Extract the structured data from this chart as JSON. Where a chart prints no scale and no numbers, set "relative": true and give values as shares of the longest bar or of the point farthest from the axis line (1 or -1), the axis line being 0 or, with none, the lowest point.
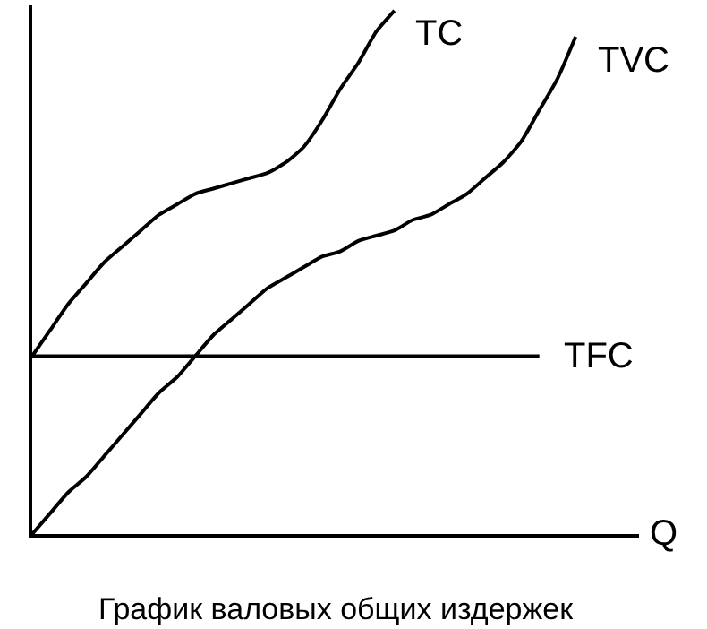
{
  "chart_data": {
    "type": "line",
    "relative": true,
    "title": "График валовых общих издержек",
    "xlabel": "Q",
    "categories": [
      null,
      null,
      null,
      null,
      null,
      null,
      null,
      null,
      null,
      null,
      null,
      null,
      null,
      null,
      null,
      null,
      null,
      null,
      null,
      null,
      null,
      null,
      null,
      null,
      null,
      null,
      null,
      null,
      null,
      null,
      null
    ],
    "series": [
      {
        "name": "TC",
        "color": "#000000",
        "values": [
          0.34,
          0.39,
          0.44,
          0.48,
          0.52,
          0.55,
          0.58,
          0.61,
          0.63,
          0.65,
          0.66,
          0.67,
          0.68,
          0.69,
          0.71,
          0.74,
          0.79,
          0.85,
          0.9,
          0.96,
          1.0,
          null,
          null,
          null,
          null,
          null,
          null,
          null,
          null,
          null,
          null
        ]
      },
      {
        "name": "TVC",
        "color": "#000000",
        "values": [
          0,
          0.04,
          0.08,
          0.11,
          0.15,
          0.19,
          0.23,
          0.27,
          0.3,
          0.34,
          0.38,
          0.41,
          0.44,
          0.47,
          0.49,
          0.51,
          0.53,
          0.54,
          0.56,
          0.57,
          0.58,
          0.6,
          0.61,
          0.63,
          0.65,
          0.68,
          0.71,
          0.75,
          0.81,
          0.87,
          0.95
        ]
      },
      {
        "name": "TFC",
        "color": "#000000",
        "values": [
          0.34,
          0.34,
          0.34,
          0.34,
          0.34,
          0.34,
          0.34,
          0.34,
          0.34,
          0.34,
          0.34,
          0.34,
          0.34,
          0.34,
          0.34,
          0.34,
          0.34,
          0.34,
          0.34,
          0.34,
          0.34,
          0.34,
          0.34,
          0.34,
          0.34,
          0.34,
          0.34,
          0.34,
          0.34,
          null,
          null
        ]
      }
    ],
    "marker": "none",
    "line_style": "solid"
  }
}
